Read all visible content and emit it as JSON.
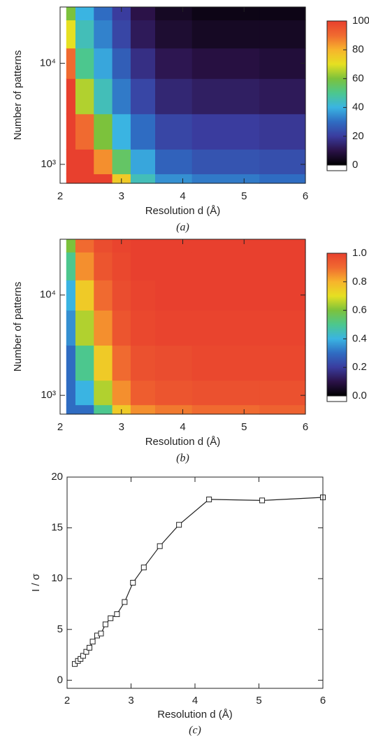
{
  "chart_data": [
    {
      "type": "contour",
      "caption": "(a)",
      "xlabel": "Resolution d (Å)",
      "ylabel": "Number of patterns",
      "x": [
        2.1,
        2.4,
        2.7,
        3.0,
        3.3,
        3.8,
        4.5,
        6.0
      ],
      "y": [
        650,
        1000,
        2000,
        5000,
        10000,
        20000,
        36000
      ],
      "z": [
        [
          100,
          100,
          100,
          75,
          45,
          35,
          32,
          30
        ],
        [
          100,
          100,
          85,
          55,
          38,
          28,
          25,
          24
        ],
        [
          100,
          90,
          60,
          40,
          30,
          22,
          20,
          19
        ],
        [
          100,
          65,
          45,
          32,
          22,
          15,
          13,
          12
        ],
        [
          90,
          50,
          38,
          27,
          17,
          11,
          9,
          8
        ],
        [
          70,
          45,
          33,
          22,
          12,
          7,
          5,
          5
        ],
        [
          60,
          40,
          30,
          20,
          10,
          5,
          3,
          3
        ]
      ],
      "xlim": [
        2,
        6
      ],
      "xticks": [
        2,
        3,
        4,
        5,
        6
      ],
      "ylim": [
        650,
        36000
      ],
      "ylog": true,
      "yticks": [
        {
          "value": 1000,
          "label": "10³"
        },
        {
          "value": 10000,
          "label": "10⁴"
        }
      ],
      "zlim": [
        0,
        100
      ],
      "zticks": [
        0,
        20,
        40,
        60,
        80,
        100
      ],
      "colormap": [
        "#000000",
        "#2b1248",
        "#3a3c9e",
        "#2f6cc2",
        "#3ab4e2",
        "#4cc78e",
        "#7cc23c",
        "#e6e022",
        "#f7b42c",
        "#f06a30",
        "#e8402e"
      ]
    },
    {
      "type": "contour",
      "caption": "(b)",
      "xlabel": "Resolution d (Å)",
      "ylabel": "Number of patterns",
      "x": [
        2.1,
        2.4,
        2.7,
        3.0,
        3.3,
        3.8,
        4.5,
        6.0
      ],
      "y": [
        650,
        1000,
        2000,
        5000,
        10000,
        20000,
        36000
      ],
      "z": [
        [
          0.3,
          0.3,
          0.5,
          0.75,
          0.85,
          0.88,
          0.9,
          0.92
        ],
        [
          0.3,
          0.4,
          0.65,
          0.85,
          0.93,
          0.95,
          0.96,
          0.96
        ],
        [
          0.3,
          0.5,
          0.75,
          0.9,
          0.96,
          0.97,
          0.98,
          0.98
        ],
        [
          0.35,
          0.65,
          0.85,
          0.95,
          0.98,
          0.99,
          0.99,
          0.99
        ],
        [
          0.4,
          0.75,
          0.9,
          0.97,
          0.99,
          1,
          1,
          1
        ],
        [
          0.5,
          0.85,
          0.95,
          0.98,
          1,
          1,
          1,
          1
        ],
        [
          0.6,
          0.9,
          0.97,
          0.99,
          1,
          1,
          1,
          1
        ]
      ],
      "xlim": [
        2,
        6
      ],
      "xticks": [
        2,
        3,
        4,
        5,
        6
      ],
      "ylim": [
        650,
        36000
      ],
      "ylog": true,
      "yticks": [
        {
          "value": 1000,
          "label": "10³"
        },
        {
          "value": 10000,
          "label": "10⁴"
        }
      ],
      "zlim": [
        0,
        1
      ],
      "zticks": [
        {
          "value": 0,
          "label": "0.0"
        },
        {
          "value": 0.2,
          "label": "0.2"
        },
        {
          "value": 0.4,
          "label": "0.4"
        },
        {
          "value": 0.6,
          "label": "0.6"
        },
        {
          "value": 0.8,
          "label": "0.8"
        },
        {
          "value": 1,
          "label": "1.0"
        }
      ],
      "colormap": [
        "#000000",
        "#2b1248",
        "#3a3c9e",
        "#2f6cc2",
        "#3ab4e2",
        "#4cc78e",
        "#7cc23c",
        "#e6e022",
        "#f7b42c",
        "#f06a30",
        "#e8402e"
      ]
    },
    {
      "type": "line",
      "caption": "(c)",
      "xlabel": "Resolution d (Å)",
      "ylabel": "I / σ",
      "x": [
        2.12,
        2.17,
        2.21,
        2.25,
        2.3,
        2.35,
        2.4,
        2.47,
        2.53,
        2.6,
        2.68,
        2.78,
        2.9,
        3.03,
        3.2,
        3.45,
        3.75,
        4.22,
        5.05,
        6.0
      ],
      "values": [
        1.6,
        1.9,
        2.1,
        2.4,
        2.8,
        3.2,
        3.8,
        4.4,
        4.6,
        5.5,
        6.1,
        6.5,
        7.7,
        9.6,
        11.1,
        13.2,
        15.3,
        17.8,
        17.7,
        18.0
      ],
      "color": "#222222",
      "marker": "square",
      "xlim": [
        2,
        6
      ],
      "xticks": [
        2,
        3,
        4,
        5,
        6
      ],
      "ylim": [
        -0.8,
        20
      ],
      "yticks": [
        0,
        5,
        10,
        15,
        20
      ]
    }
  ]
}
